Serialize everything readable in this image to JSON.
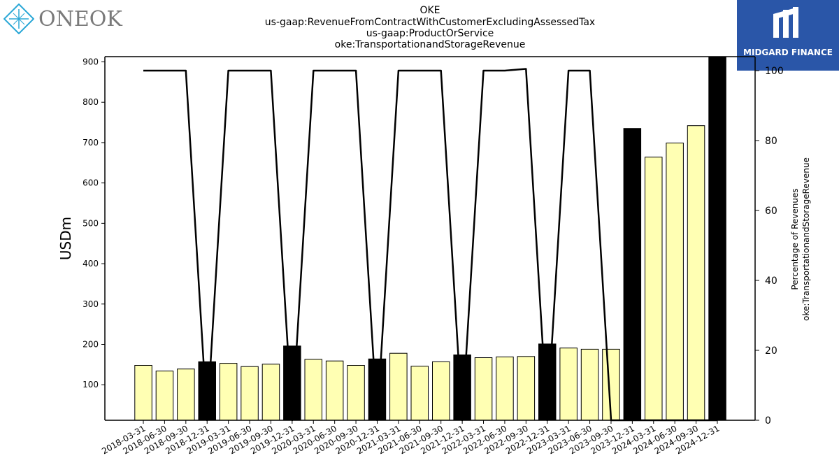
{
  "header": {
    "title_lines": [
      "OKE",
      "us-gaap:RevenueFromContractWithCustomerExcludingAssessedTax",
      "us-gaap:ProductOrService",
      "oke:TransportationandStorageRevenue"
    ]
  },
  "logos": {
    "left_text": "ONEOK",
    "right_text": "MIDGARD FINANCE"
  },
  "colors": {
    "bar_quarter": "#ffffb3",
    "bar_annual": "#000000",
    "line": "#000000",
    "brand_blue": "#2a56a8",
    "oneok_blue": "#2aa7d6"
  },
  "chart_data": {
    "type": "bar",
    "categories": [
      "2018-03-31",
      "2018-06-30",
      "2018-09-30",
      "2018-12-31",
      "2019-03-31",
      "2019-06-30",
      "2019-09-30",
      "2019-12-31",
      "2020-03-31",
      "2020-06-30",
      "2020-09-30",
      "2020-12-31",
      "2021-03-31",
      "2021-06-30",
      "2021-09-30",
      "2021-12-31",
      "2022-03-31",
      "2022-06-30",
      "2022-09-30",
      "2022-12-31",
      "2023-03-31",
      "2023-06-30",
      "2023-09-30",
      "2023-12-31",
      "2024-03-31",
      "2024-06-30",
      "2024-09-30",
      "2024-12-31"
    ],
    "series": [
      {
        "kind": "bar",
        "axis": "left",
        "values": [
          148,
          134,
          139,
          157,
          153,
          145,
          151,
          196,
          163,
          159,
          148,
          164,
          178,
          146,
          157,
          174,
          167,
          169,
          170,
          201,
          191,
          188,
          188,
          735,
          664,
          699,
          742,
          915
        ],
        "annual": [
          false,
          false,
          false,
          true,
          false,
          false,
          false,
          true,
          false,
          false,
          false,
          true,
          false,
          false,
          false,
          true,
          false,
          false,
          false,
          true,
          false,
          false,
          false,
          true,
          false,
          false,
          false,
          true
        ]
      },
      {
        "kind": "line",
        "axis": "right",
        "values": [
          100,
          100,
          100,
          0,
          100,
          100,
          100,
          0,
          100,
          100,
          100,
          0,
          100,
          100,
          100,
          0,
          100,
          100,
          100.5,
          0,
          100,
          100,
          0,
          0,
          0,
          0,
          0,
          0
        ]
      }
    ],
    "ylabel": "USDm",
    "ylabel_right": [
      "Percentage of Revenues",
      "oke:TransportationandStorageRevenue"
    ],
    "ylim": [
      12,
      913
    ],
    "yticks": [
      100,
      200,
      300,
      400,
      500,
      600,
      700,
      800,
      900
    ],
    "ylim_right": [
      0,
      104
    ],
    "yticks_right": [
      0,
      20,
      40,
      60,
      80,
      100
    ],
    "grid": false
  }
}
